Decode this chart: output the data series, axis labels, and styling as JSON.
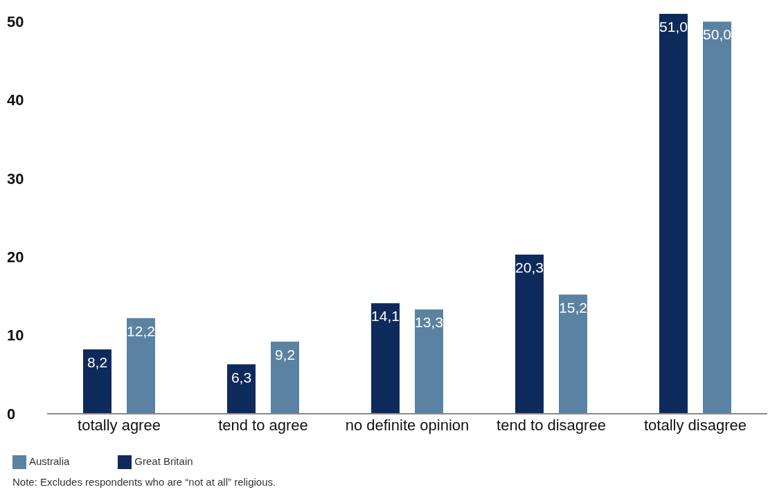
{
  "chart_data": {
    "type": "bar",
    "categories": [
      "totally agree",
      "tend to agree",
      "no definite opinion",
      "tend to disagree",
      "totally disagree"
    ],
    "series": [
      {
        "name": "Great Britain",
        "color": "#0d2a5c",
        "values": [
          8.2,
          6.3,
          14.1,
          20.3,
          51.0
        ],
        "value_labels": [
          "8,2",
          "6,3",
          "14,1",
          "20,3",
          "51,0"
        ]
      },
      {
        "name": "Australia",
        "color": "#5a82a3",
        "values": [
          12.2,
          9.2,
          13.3,
          15.2,
          50.0
        ],
        "value_labels": [
          "12,2",
          "9,2",
          "13,3",
          "15,2",
          "50,0"
        ]
      }
    ],
    "ylim": [
      0,
      51
    ],
    "yticks": [
      0,
      10,
      20,
      30,
      40,
      50
    ],
    "grid": false,
    "legend": "bottom left",
    "annotations": [
      "Note: Excludes respondents who are “not at all” religious."
    ]
  }
}
